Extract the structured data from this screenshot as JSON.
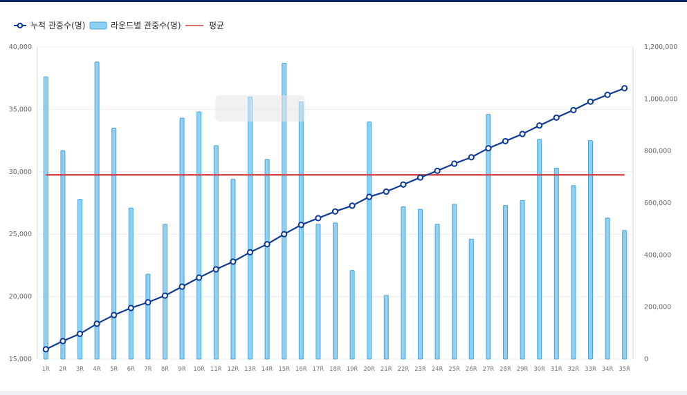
{
  "chart_data": {
    "type": "bar+line",
    "title": "",
    "xlabel": "",
    "categories": [
      "1R",
      "2R",
      "3R",
      "4R",
      "5R",
      "6R",
      "7R",
      "8R",
      "9R",
      "10R",
      "11R",
      "12R",
      "13R",
      "14R",
      "15R",
      "16R",
      "17R",
      "18R",
      "19R",
      "20R",
      "21R",
      "22R",
      "23R",
      "24R",
      "25R",
      "26R",
      "27R",
      "28R",
      "29R",
      "30R",
      "31R",
      "32R",
      "33R",
      "34R",
      "35R"
    ],
    "series": [
      {
        "name": "라운드별 관중수(명)",
        "kind": "bar",
        "axis": "left",
        "color": "#8fd0f5",
        "border": "#4aa3dc",
        "values": [
          37600,
          31700,
          27800,
          38800,
          33500,
          27100,
          21800,
          25800,
          34300,
          34800,
          32100,
          29400,
          36000,
          31000,
          38700,
          35600,
          25800,
          25900,
          22100,
          34000,
          20100,
          27200,
          27000,
          25800,
          27400,
          24600,
          34600,
          27300,
          27700,
          32600,
          30300,
          28900,
          32500,
          26300,
          25300
        ]
      },
      {
        "name": "누적 관중수(명)",
        "kind": "line",
        "axis": "right",
        "color": "#0d3a94",
        "values": [
          37600,
          69300,
          97100,
          135900,
          169400,
          196500,
          218300,
          244100,
          278400,
          313200,
          345300,
          374700,
          410700,
          441700,
          480400,
          516000,
          541800,
          567700,
          589800,
          623800,
          643900,
          671100,
          698100,
          723900,
          751300,
          775900,
          810500,
          837800,
          865500,
          898100,
          928400,
          957300,
          989800,
          1016100,
          1041400
        ]
      },
      {
        "name": "평균",
        "kind": "line",
        "axis": "left",
        "color": "#d23b3b",
        "values": [
          29754,
          29754,
          29754,
          29754,
          29754,
          29754,
          29754,
          29754,
          29754,
          29754,
          29754,
          29754,
          29754,
          29754,
          29754,
          29754,
          29754,
          29754,
          29754,
          29754,
          29754,
          29754,
          29754,
          29754,
          29754,
          29754,
          29754,
          29754,
          29754,
          29754,
          29754,
          29754,
          29754,
          29754,
          29754
        ]
      }
    ],
    "y_left": {
      "min": 15000,
      "max": 40000,
      "ticks": [
        "15,000",
        "20,000",
        "25,000",
        "30,000",
        "35,000",
        "40,000"
      ]
    },
    "y_right": {
      "min": 0,
      "max": 1200000,
      "ticks": [
        "0",
        "200,000",
        "400,000",
        "600,000",
        "800,000",
        "1,000,000",
        "1,200,000"
      ]
    },
    "grid": true,
    "legend_position": "top-left"
  }
}
